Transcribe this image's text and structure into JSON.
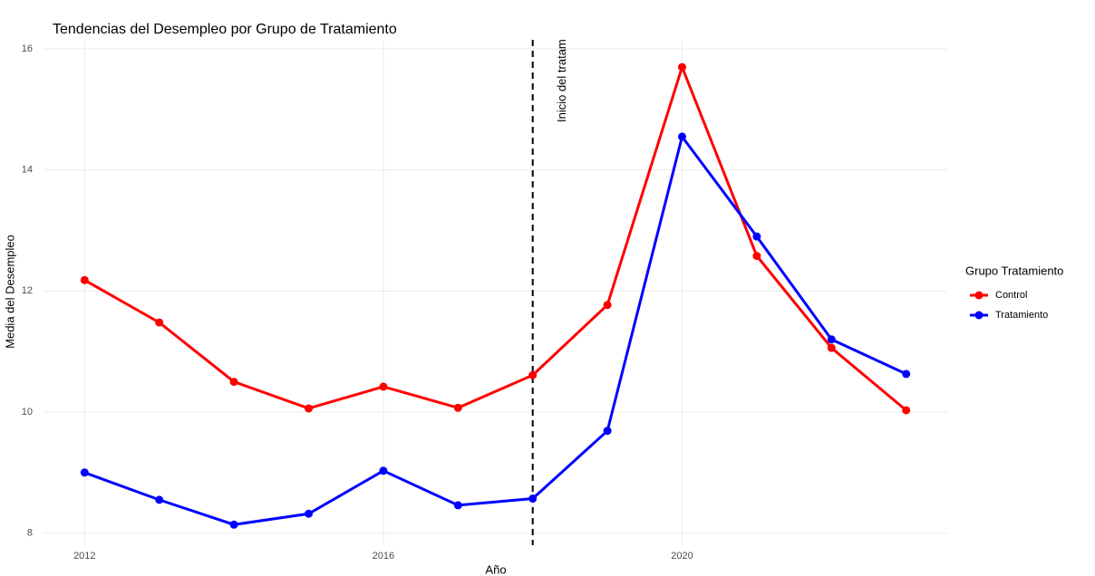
{
  "chart_data": {
    "type": "line",
    "title": "Tendencias del Desempleo por Grupo de Tratamiento",
    "x_label": "Año",
    "y_label": "Media del Desempleo",
    "x": [
      2012,
      2013,
      2014,
      2015,
      2016,
      2017,
      2018,
      2019,
      2020,
      2021,
      2022,
      2023
    ],
    "series": [
      {
        "name": "Control",
        "color": "#ff0000",
        "values": [
          12.18,
          11.48,
          10.5,
          10.06,
          10.42,
          10.07,
          10.61,
          11.77,
          15.7,
          12.58,
          11.06,
          10.03
        ]
      },
      {
        "name": "Tratamiento",
        "color": "#0000ff",
        "values": [
          9.0,
          8.55,
          8.14,
          8.32,
          9.03,
          8.46,
          8.57,
          9.69,
          14.55,
          12.9,
          11.2,
          10.63
        ]
      }
    ],
    "legend_title": "Grupo Tratamiento",
    "legend": "right",
    "vline": {
      "x": 2018,
      "label": "Inicio del tratamiento"
    },
    "xlim": [
      2011.45,
      2023.55
    ],
    "xticks": [
      2012,
      2016,
      2020
    ],
    "ylim": [
      7.8,
      16.15
    ],
    "yticks": [
      8,
      10,
      12,
      14,
      16
    ],
    "grid": true
  }
}
